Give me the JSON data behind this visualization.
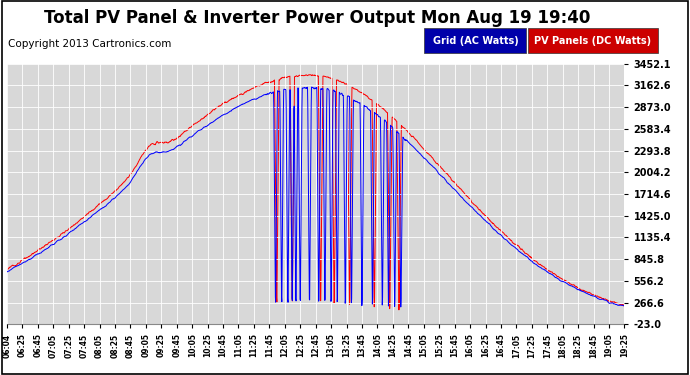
{
  "title": "Total PV Panel & Inverter Power Output Mon Aug 19 19:40",
  "copyright": "Copyright 2013 Cartronics.com",
  "legend_blue_label": "Grid (AC Watts)",
  "legend_red_label": "PV Panels (DC Watts)",
  "ylim": [
    -23.0,
    3452.1
  ],
  "yticks": [
    3452.1,
    3162.6,
    2873.0,
    2583.4,
    2293.8,
    2004.2,
    1714.6,
    1425.0,
    1135.4,
    845.8,
    556.2,
    266.6,
    -23.0
  ],
  "xtick_labels": [
    "06:04",
    "06:25",
    "06:45",
    "07:05",
    "07:25",
    "07:45",
    "08:05",
    "08:25",
    "08:45",
    "09:05",
    "09:25",
    "09:45",
    "10:05",
    "10:25",
    "10:45",
    "11:05",
    "11:25",
    "11:45",
    "12:05",
    "12:25",
    "12:45",
    "13:05",
    "13:25",
    "13:45",
    "14:05",
    "14:25",
    "14:45",
    "15:05",
    "15:25",
    "15:45",
    "16:05",
    "16:25",
    "16:45",
    "17:05",
    "17:25",
    "17:45",
    "18:05",
    "18:25",
    "18:45",
    "19:05",
    "19:25"
  ],
  "blue_color": "#0000ff",
  "red_color": "#ff0000",
  "background_color": "#ffffff",
  "plot_bg_color": "#d8d8d8",
  "grid_color": "#ffffff",
  "title_fontsize": 12,
  "copyright_fontsize": 7.5
}
